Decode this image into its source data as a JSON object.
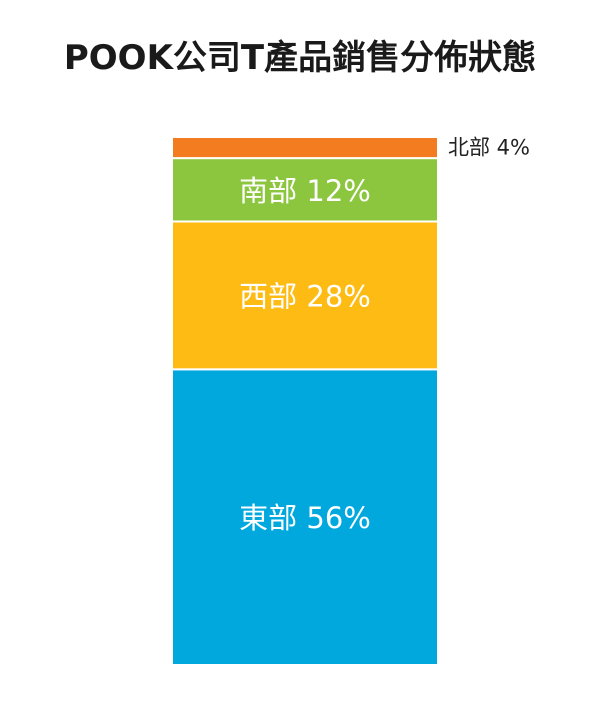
{
  "chart_data": {
    "type": "bar",
    "stacked": true,
    "title": "POOK公司T產品銷售分佈狀態",
    "unit": "%",
    "segments": [
      {
        "label": "東部",
        "value": 56,
        "display": "東部 56%",
        "color": "#00a8de"
      },
      {
        "label": "西部",
        "value": 28,
        "display": "西部 28%",
        "color": "#fdbb13"
      },
      {
        "label": "南部",
        "value": 12,
        "display": "南部 12%",
        "color": "#8cc63f"
      },
      {
        "label": "北部",
        "value": 4,
        "display": "北部 4%",
        "color": "#f47c20"
      }
    ]
  }
}
